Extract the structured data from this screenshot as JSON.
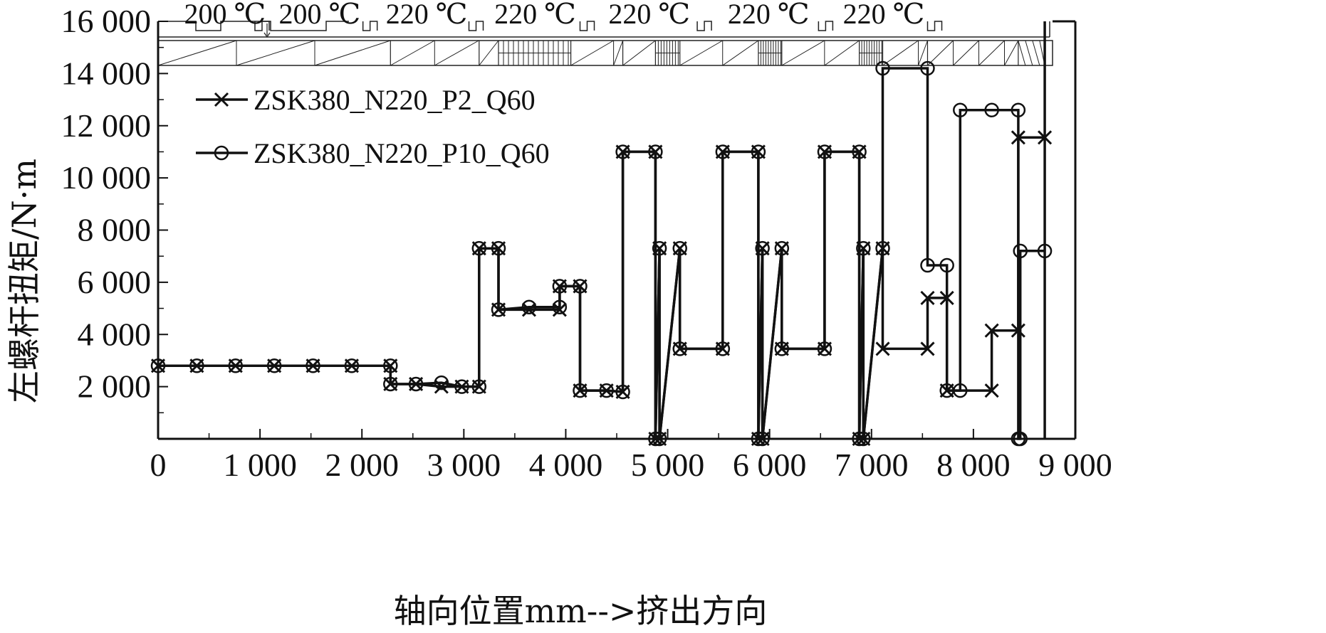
{
  "chart_data": {
    "type": "line",
    "title": "",
    "xlabel": "轴向位置mm-->挤出方向",
    "ylabel": "左螺杆扭矩/N·m",
    "xlim": [
      0,
      9000
    ],
    "ylim": [
      0,
      16000
    ],
    "x_ticks": [
      0,
      1000,
      2000,
      3000,
      4000,
      5000,
      6000,
      7000,
      8000,
      9000
    ],
    "x_tick_labels": [
      "0",
      "1 000",
      "2 000",
      "3 000",
      "4 000",
      "5 000",
      "6 000",
      "7 000",
      "8 000",
      "9 000"
    ],
    "y_ticks": [
      2000,
      4000,
      6000,
      8000,
      10000,
      12000,
      14000,
      16000
    ],
    "y_tick_labels": [
      "2 000",
      "4 000",
      "6 000",
      "8 000",
      "10 000",
      "12 000",
      "14 000",
      "16 000"
    ],
    "grid": false,
    "legend_position": "top-left",
    "barrel_temperatures": [
      "200 ℃",
      "200 ℃",
      "220 ℃",
      "220 ℃",
      "220 ℃",
      "220 ℃",
      "220 ℃"
    ],
    "series": [
      {
        "name": "ZSK380_N220_P2_Q60",
        "marker": "x",
        "x": [
          0,
          380,
          760,
          1140,
          1520,
          1900,
          2280,
          2280,
          2530,
          2780,
          2980,
          3150,
          3150,
          3340,
          3340,
          3640,
          3940,
          3940,
          4140,
          4140,
          4400,
          4560,
          4560,
          4880,
          4880,
          4920,
          4920,
          5120,
          5120,
          5540,
          5540,
          5890,
          5890,
          5930,
          5930,
          6120,
          6120,
          6540,
          6540,
          6880,
          6880,
          6920,
          6920,
          7110,
          7110,
          7550,
          7550,
          7740,
          7740,
          8180,
          8180,
          8440,
          8440,
          8700
        ],
        "values": [
          2800,
          2800,
          2800,
          2800,
          2800,
          2800,
          2800,
          2100,
          2100,
          2000,
          2000,
          2000,
          7300,
          7300,
          4950,
          4950,
          4950,
          5850,
          5850,
          1850,
          1850,
          1800,
          11000,
          11000,
          0,
          7300,
          0,
          7300,
          3450,
          3450,
          11000,
          11000,
          0,
          7300,
          0,
          7300,
          3450,
          3450,
          11000,
          11000,
          0,
          7300,
          0,
          7300,
          3450,
          3450,
          5400,
          5400,
          1850,
          1850,
          4150,
          4150,
          11550,
          11550
        ]
      },
      {
        "name": "ZSK380_N220_P10_Q60",
        "marker": "o",
        "x": [
          0,
          380,
          760,
          1140,
          1520,
          1900,
          2280,
          2280,
          2530,
          2780,
          2980,
          3150,
          3150,
          3340,
          3340,
          3640,
          3940,
          3940,
          4140,
          4140,
          4400,
          4560,
          4560,
          4880,
          4880,
          4920,
          4920,
          5120,
          5120,
          5540,
          5540,
          5890,
          5890,
          5930,
          5930,
          6120,
          6120,
          6540,
          6540,
          6880,
          6880,
          6920,
          6920,
          7110,
          7110,
          7550,
          7550,
          7740,
          7740,
          7870,
          7870,
          8180,
          8440,
          8440,
          8460,
          8460,
          8700
        ],
        "values": [
          2800,
          2800,
          2800,
          2800,
          2800,
          2800,
          2800,
          2100,
          2100,
          2150,
          2000,
          2000,
          7300,
          7300,
          4950,
          5050,
          5050,
          5850,
          5850,
          1850,
          1850,
          1800,
          11000,
          11000,
          0,
          7300,
          0,
          7300,
          3450,
          3450,
          11000,
          11000,
          0,
          7300,
          0,
          7300,
          3450,
          3450,
          11000,
          11000,
          0,
          7300,
          0,
          7300,
          14200,
          14200,
          6650,
          6650,
          1850,
          1850,
          12600,
          12600,
          12600,
          0,
          0,
          7200,
          7200
        ]
      }
    ]
  }
}
